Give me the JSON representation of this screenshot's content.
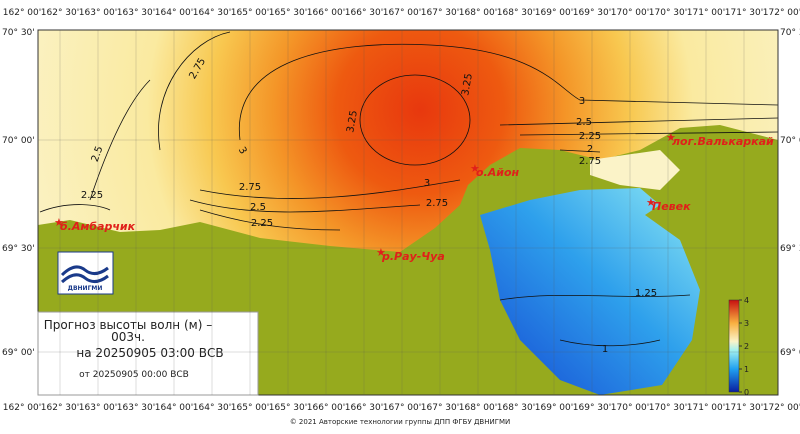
{
  "header": {
    "title_line1": "Прогноз высоты волн (м) –",
    "title_line2": "003ч.",
    "forecast_time": "на 20250905 03:00 ВСВ",
    "issued_time": "от 20250905 00:00 ВСВ"
  },
  "logo": {
    "label": "ДВНИГМИ"
  },
  "longitudes": [
    "162° 00'",
    "162° 30'",
    "163° 00'",
    "163° 30'",
    "164° 00'",
    "164° 30'",
    "165° 00'",
    "165° 30'",
    "166° 00'",
    "166° 30'",
    "167° 00'",
    "167° 30'",
    "168° 00'",
    "168° 30'",
    "169° 00'",
    "169° 30'",
    "170° 00'",
    "170° 30'",
    "171° 00'",
    "171° 30'",
    "172° 00'"
  ],
  "latitudes_left": [
    "70° 30'",
    "70° 00'",
    "69° 30'",
    "69° 00'"
  ],
  "latitudes_right": [
    "70° 3",
    "70° 0",
    "69° 3",
    "69° 0"
  ],
  "places": [
    "о.Айон",
    "лог.Валькаркай",
    "Певек",
    "б.Амбарчик",
    "р.Рау-Чуа"
  ],
  "contours": [
    "2.75",
    "2.5",
    "2.25",
    "3",
    "3.25",
    "3.25",
    "3",
    "2.75",
    "2.5",
    "2.25",
    "3",
    "2.75",
    "2.5",
    "2.25",
    "2",
    "2.75",
    "1.25",
    "1"
  ],
  "colorbar": {
    "lim": [
      0,
      4
    ],
    "ticks": [
      0,
      1,
      2,
      3,
      4
    ]
  },
  "footer": "© 2021 Авторские технологии группы ДПП ФГБУ ДВНИГМИ"
}
